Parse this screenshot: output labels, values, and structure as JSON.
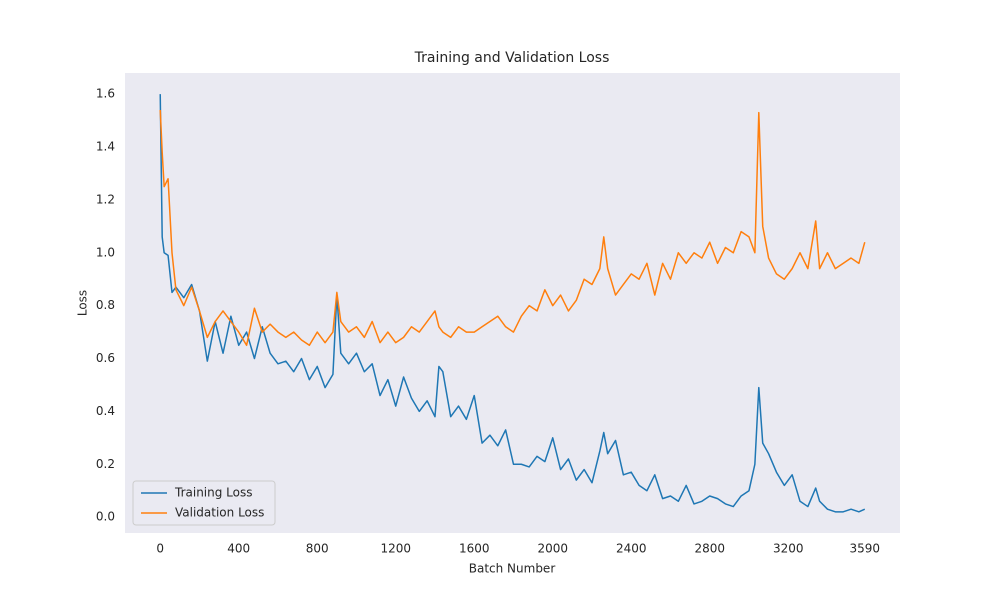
{
  "chart_data": {
    "type": "line",
    "title": "Training and Validation Loss",
    "x_label": "Batch Number",
    "y_label": "Loss",
    "x": [
      0,
      10,
      20,
      40,
      60,
      80,
      120,
      160,
      200,
      240,
      280,
      320,
      360,
      400,
      440,
      480,
      520,
      560,
      600,
      640,
      680,
      720,
      760,
      800,
      840,
      880,
      900,
      920,
      960,
      1000,
      1040,
      1080,
      1120,
      1160,
      1200,
      1240,
      1280,
      1320,
      1360,
      1400,
      1420,
      1440,
      1480,
      1520,
      1560,
      1600,
      1640,
      1680,
      1720,
      1760,
      1800,
      1840,
      1880,
      1920,
      1960,
      2000,
      2040,
      2080,
      2120,
      2160,
      2200,
      2240,
      2260,
      2280,
      2320,
      2360,
      2400,
      2440,
      2480,
      2520,
      2560,
      2600,
      2640,
      2680,
      2720,
      2760,
      2800,
      2840,
      2880,
      2920,
      2960,
      3000,
      3030,
      3050,
      3070,
      3100,
      3140,
      3180,
      3220,
      3260,
      3300,
      3340,
      3360,
      3400,
      3440,
      3480,
      3520,
      3560,
      3590
    ],
    "series": [
      {
        "name": "Training Loss",
        "color": "#1f77b4",
        "values": [
          1.6,
          1.06,
          1.0,
          0.99,
          0.85,
          0.87,
          0.83,
          0.88,
          0.78,
          0.59,
          0.74,
          0.62,
          0.76,
          0.65,
          0.7,
          0.6,
          0.72,
          0.62,
          0.58,
          0.59,
          0.55,
          0.6,
          0.52,
          0.57,
          0.49,
          0.54,
          0.84,
          0.62,
          0.58,
          0.62,
          0.55,
          0.58,
          0.46,
          0.52,
          0.42,
          0.53,
          0.45,
          0.4,
          0.44,
          0.38,
          0.57,
          0.55,
          0.38,
          0.42,
          0.37,
          0.46,
          0.28,
          0.31,
          0.27,
          0.33,
          0.2,
          0.2,
          0.19,
          0.23,
          0.21,
          0.3,
          0.18,
          0.22,
          0.14,
          0.18,
          0.13,
          0.25,
          0.32,
          0.24,
          0.29,
          0.16,
          0.17,
          0.12,
          0.1,
          0.16,
          0.07,
          0.08,
          0.06,
          0.12,
          0.05,
          0.06,
          0.08,
          0.07,
          0.05,
          0.04,
          0.08,
          0.1,
          0.2,
          0.49,
          0.28,
          0.24,
          0.17,
          0.12,
          0.16,
          0.06,
          0.04,
          0.11,
          0.06,
          0.03,
          0.02,
          0.02,
          0.03,
          0.02,
          0.03
        ]
      },
      {
        "name": "Validation Loss",
        "color": "#ff7f0e",
        "values": [
          1.54,
          1.38,
          1.25,
          1.28,
          1.0,
          0.86,
          0.8,
          0.87,
          0.78,
          0.68,
          0.74,
          0.78,
          0.74,
          0.7,
          0.65,
          0.79,
          0.7,
          0.73,
          0.7,
          0.68,
          0.7,
          0.67,
          0.65,
          0.7,
          0.66,
          0.7,
          0.85,
          0.74,
          0.7,
          0.72,
          0.68,
          0.74,
          0.66,
          0.7,
          0.66,
          0.68,
          0.72,
          0.7,
          0.74,
          0.78,
          0.72,
          0.7,
          0.68,
          0.72,
          0.7,
          0.7,
          0.72,
          0.74,
          0.76,
          0.72,
          0.7,
          0.76,
          0.8,
          0.78,
          0.86,
          0.8,
          0.84,
          0.78,
          0.82,
          0.9,
          0.88,
          0.94,
          1.06,
          0.94,
          0.84,
          0.88,
          0.92,
          0.9,
          0.96,
          0.84,
          0.96,
          0.9,
          1.0,
          0.96,
          1.0,
          0.98,
          1.04,
          0.96,
          1.02,
          1.0,
          1.08,
          1.06,
          1.0,
          1.53,
          1.1,
          0.98,
          0.92,
          0.9,
          0.94,
          1.0,
          0.94,
          1.12,
          0.94,
          1.0,
          0.94,
          0.96,
          0.98,
          0.96,
          1.04
        ]
      }
    ],
    "xlim": [
      -179.5,
      3769.5
    ],
    "ylim": [
      -0.06,
      1.68
    ],
    "xticks": [
      0,
      400,
      800,
      1200,
      1600,
      2000,
      2400,
      2800,
      3200,
      3590
    ],
    "yticks": [
      {
        "value": 0,
        "label": "0.0"
      },
      0.2,
      0.4,
      0.6,
      0.8,
      {
        "value": 1,
        "label": "1.0"
      },
      1.2,
      1.4,
      1.6
    ],
    "grid": false,
    "legend": "lower left",
    "background": "#eaeaf2"
  }
}
